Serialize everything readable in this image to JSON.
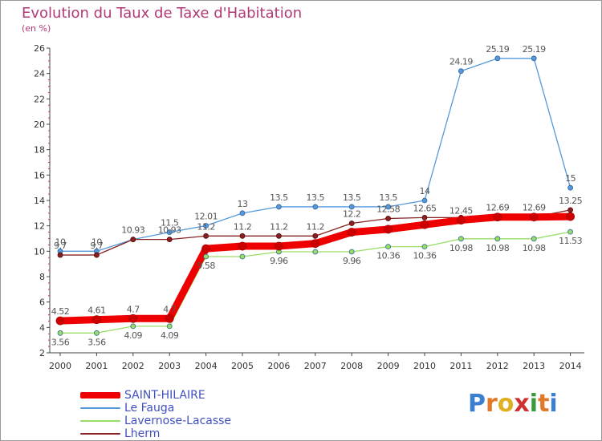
{
  "title": "Evolution du Taux de Taxe d'Habitation",
  "unit": "(en %)",
  "logo": {
    "letters": [
      {
        "ch": "P",
        "color": "#3a7fd0"
      },
      {
        "ch": "r",
        "color": "#e07a2a"
      },
      {
        "ch": "o",
        "color": "#e0b020"
      },
      {
        "ch": "x",
        "color": "#d03030"
      },
      {
        "ch": "i",
        "color": "#3a9a40"
      },
      {
        "ch": "t",
        "color": "#e07a2a"
      },
      {
        "ch": "i",
        "color": "#3a7fd0"
      }
    ]
  },
  "chart_data": {
    "type": "line",
    "title": "Evolution du Taux de Taxe d'Habitation",
    "ylabel": "(en %)",
    "xlabel": "",
    "categories": [
      "2000",
      "2001",
      "2002",
      "2003",
      "2004",
      "2005",
      "2006",
      "2007",
      "2008",
      "2009",
      "2010",
      "2011",
      "2012",
      "2013",
      "2014"
    ],
    "yticks": [
      2,
      4,
      6,
      8,
      10,
      12,
      14,
      16,
      18,
      20,
      22,
      24,
      26
    ],
    "ylim": [
      2,
      26
    ],
    "grid": false,
    "legend": "bottom-left",
    "series": [
      {
        "name": "SAINT-HILAIRE",
        "color": "#ee0000",
        "values": [
          4.52,
          4.61,
          4.7,
          4.7,
          10.2,
          10.4,
          10.4,
          10.61,
          11.5,
          11.73,
          12.09,
          12.45,
          12.69,
          12.69,
          12.73
        ],
        "labels": [
          "4.52",
          "4.61",
          "4.7",
          "4.7",
          "",
          "",
          "",
          "",
          "",
          "",
          "",
          "12.45",
          "12.69",
          "12.69",
          ""
        ]
      },
      {
        "name": "Le Fauga",
        "color": "#5599dd",
        "values": [
          10,
          10,
          10.93,
          11.5,
          12.01,
          13,
          13.5,
          13.5,
          13.5,
          13.5,
          14,
          24.19,
          25.19,
          25.19,
          15
        ],
        "labels": [
          "10",
          "10",
          "10.93",
          "11.5",
          "12.01",
          "13",
          "13.5",
          "13.5",
          "13.5",
          "13.5",
          "14",
          "24.19",
          "25.19",
          "25.19",
          "15"
        ]
      },
      {
        "name": "Lavernose-Lacasse",
        "color": "#99dd66",
        "values": [
          3.56,
          3.56,
          4.09,
          4.09,
          9.58,
          9.58,
          9.96,
          9.96,
          9.96,
          10.36,
          10.36,
          10.98,
          10.98,
          10.98,
          11.53
        ],
        "labels": [
          "3.56",
          "3.56",
          "4.09",
          "4.09",
          "9.58",
          "",
          "9.96",
          "",
          "9.96",
          "10.36",
          "10.36",
          "10.98",
          "10.98",
          "10.98",
          "11.53"
        ]
      },
      {
        "name": "Lherm",
        "color": "#882222",
        "values": [
          9.7,
          9.7,
          10.93,
          10.93,
          11.2,
          11.2,
          11.2,
          11.2,
          12.2,
          12.58,
          12.65,
          12.65,
          12.69,
          12.69,
          13.25
        ],
        "labels": [
          "9.7",
          "9.7",
          "",
          "10.93",
          "11.2",
          "11.2",
          "11.2",
          "11.2",
          "12.2",
          "12.58",
          "12.65",
          "",
          "",
          "",
          "13.25"
        ]
      }
    ]
  }
}
